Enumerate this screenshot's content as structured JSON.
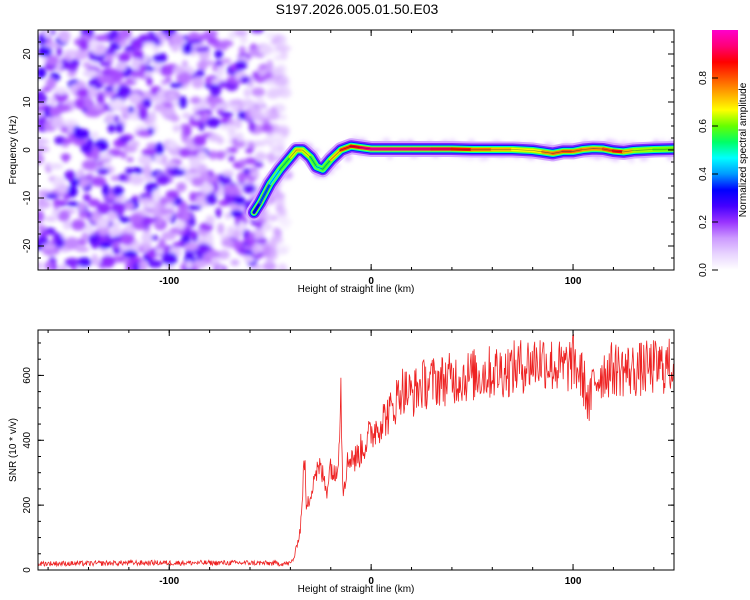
{
  "title": "S197.2026.005.01.50.E03",
  "chart_data": [
    {
      "type": "heatmap",
      "title": "S197.2026.005.01.50.E03",
      "xlabel": "Height of straight line (km)",
      "ylabel": "Frequency (Hz)",
      "xlim": [
        -165,
        150
      ],
      "ylim": [
        -25,
        25
      ],
      "x_ticks": [
        -100,
        0,
        100
      ],
      "y_ticks": [
        -20,
        -10,
        0,
        10,
        20
      ],
      "grid": false,
      "noise_region_x": [
        -165,
        -50
      ],
      "ridge": {
        "x": [
          -58,
          -55,
          -50,
          -45,
          -40,
          -37,
          -34,
          -30,
          -27,
          -24,
          -20,
          -15,
          -10,
          -5,
          0,
          10,
          20,
          30,
          40,
          50,
          60,
          70,
          80,
          85,
          90,
          95,
          100,
          105,
          110,
          115,
          120,
          125,
          130,
          140,
          150
        ],
        "freq": [
          -13,
          -11,
          -7,
          -4,
          -1.5,
          0,
          0,
          -1.5,
          -3.5,
          -4,
          -2,
          0,
          0.8,
          0.5,
          0.2,
          0.2,
          0.2,
          0.2,
          0.2,
          0.1,
          0.1,
          0.1,
          -0.1,
          -0.4,
          -0.7,
          -0.3,
          -0.3,
          0.1,
          0.3,
          0.2,
          -0.2,
          -0.4,
          -0.1,
          0.1,
          0.2
        ],
        "amplitude": [
          0.3,
          0.35,
          0.4,
          0.5,
          0.6,
          0.7,
          0.7,
          0.6,
          0.5,
          0.5,
          0.6,
          0.8,
          0.85,
          0.9,
          0.95,
          0.95,
          0.95,
          0.92,
          0.9,
          0.8,
          0.75,
          0.7,
          0.65,
          0.7,
          0.8,
          0.75,
          0.85,
          0.7,
          0.8,
          0.7,
          0.9,
          0.8,
          0.65,
          0.6,
          0.6
        ]
      },
      "colorbar": {
        "label": "Normalized spectral amplitude",
        "range": [
          0.0,
          1.0
        ],
        "ticks": [
          "0.0",
          "0.2",
          "0.4",
          "0.6",
          "0.8"
        ],
        "colors": [
          "#ffffff",
          "#e8d4ff",
          "#cc99ff",
          "#9933ff",
          "#4400ff",
          "#0000ff",
          "#0099ff",
          "#00ffff",
          "#00ff66",
          "#66ff00",
          "#ffff00",
          "#ffaa00",
          "#ff5500",
          "#ff0000",
          "#ff0077",
          "#ff00cc"
        ]
      }
    },
    {
      "type": "line",
      "xlabel": "Height of straight line (km)",
      "ylabel": "SNR (10 * v/v)",
      "xlim": [
        -165,
        150
      ],
      "ylim": [
        0,
        740
      ],
      "x_ticks": [
        -100,
        0,
        100
      ],
      "y_ticks": [
        0,
        200,
        400,
        600
      ],
      "grid": false,
      "series": [
        {
          "name": "SNR",
          "color": "#ee2222",
          "x": [
            -165,
            -140,
            -120,
            -100,
            -80,
            -60,
            -45,
            -40,
            -38,
            -35,
            -33,
            -32,
            -30,
            -28,
            -25,
            -22,
            -20,
            -18,
            -16,
            -15,
            -14,
            -12,
            -10,
            -8,
            -5,
            0,
            5,
            10,
            15,
            20,
            25,
            30,
            40,
            50,
            60,
            70,
            80,
            85,
            90,
            95,
            100,
            105,
            108,
            110,
            115,
            120,
            130,
            140,
            150
          ],
          "values": [
            20,
            20,
            22,
            22,
            22,
            22,
            20,
            20,
            40,
            130,
            350,
            180,
            240,
            300,
            310,
            250,
            330,
            280,
            380,
            560,
            250,
            320,
            360,
            340,
            370,
            420,
            460,
            490,
            560,
            540,
            570,
            580,
            590,
            600,
            610,
            620,
            640,
            650,
            630,
            620,
            640,
            590,
            500,
            580,
            610,
            620,
            615,
            625,
            630
          ]
        }
      ]
    }
  ]
}
